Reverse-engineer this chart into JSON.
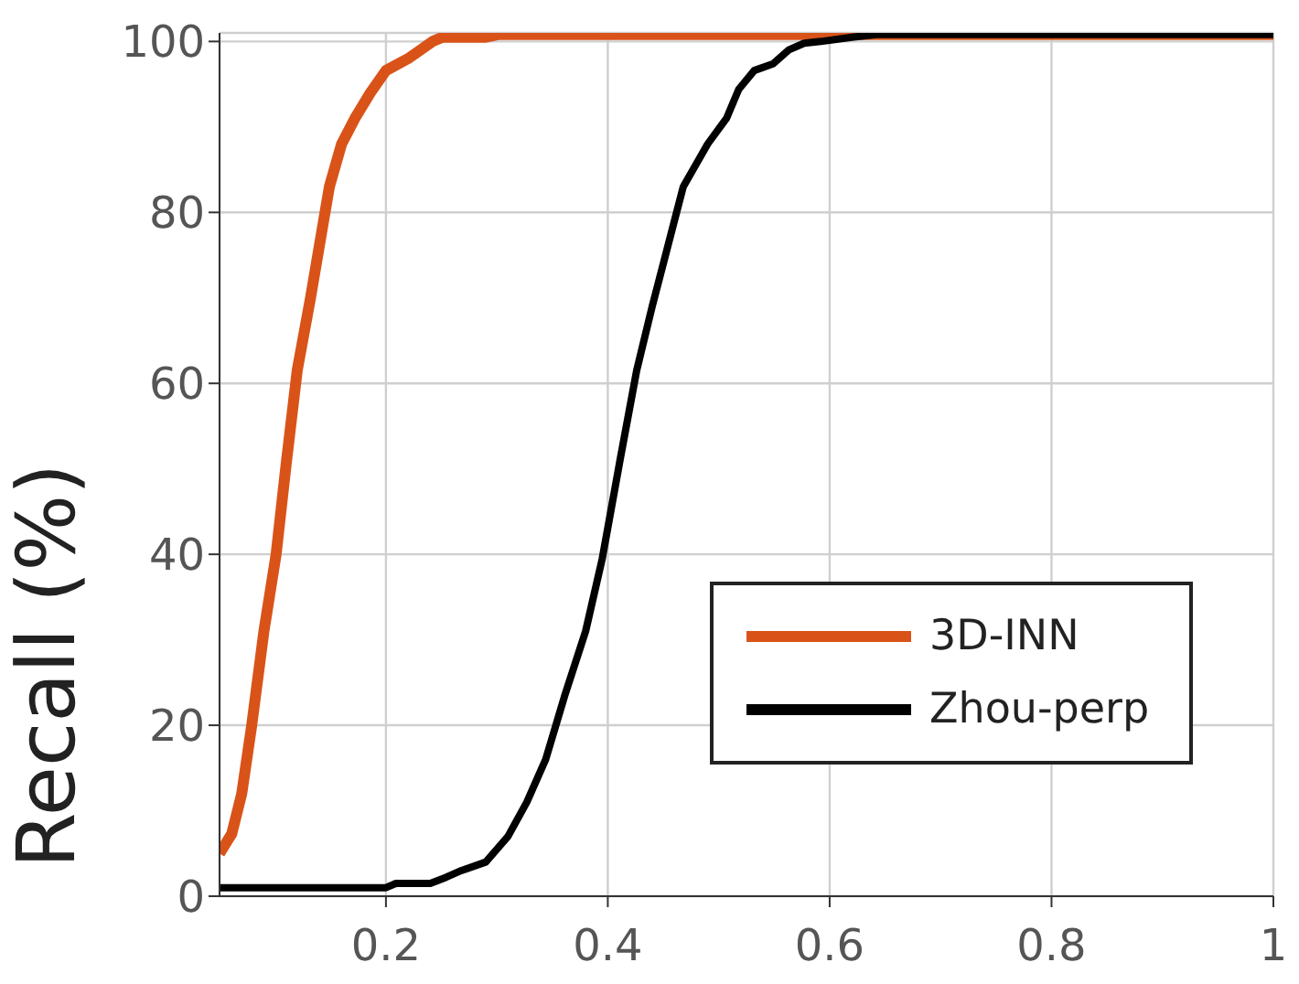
{
  "chart_data": {
    "type": "line",
    "ylabel": "Recall (%)",
    "xlim": [
      0.05,
      1
    ],
    "xticks": [
      0.2,
      0.4,
      0.6,
      0.8,
      1
    ],
    "ylim": [
      0,
      101
    ],
    "yticks": [
      0,
      20,
      40,
      60,
      80,
      100
    ],
    "grid": true,
    "legend": "bottom right",
    "marker": "none",
    "line_style": "solid",
    "series": [
      {
        "name": "3D-INN",
        "color": "#d95319",
        "x": [
          0.05,
          0.061,
          0.07,
          0.079,
          0.09,
          0.101,
          0.11,
          0.12,
          0.132,
          0.149,
          0.16,
          0.172,
          0.186,
          0.2,
          0.22,
          0.242,
          0.251,
          0.29,
          0.301,
          1
        ],
        "values": [
          5,
          7.3,
          12,
          20,
          31,
          40,
          50.5,
          61.5,
          70,
          83,
          88,
          91,
          94,
          96.6,
          98,
          100,
          100.5,
          100.5,
          100.8,
          100.8
        ]
      },
      {
        "name": "Zhou-perp",
        "color": "#000000",
        "x": [
          0.05,
          0.2,
          0.209,
          0.24,
          0.254,
          0.268,
          0.29,
          0.31,
          0.327,
          0.344,
          0.361,
          0.38,
          0.395,
          0.411,
          0.426,
          0.44,
          0.454,
          0.468,
          0.49,
          0.507,
          0.518,
          0.532,
          0.549,
          0.563,
          0.577,
          0.592,
          0.62,
          0.642,
          1
        ],
        "values": [
          1,
          1,
          1.5,
          1.5,
          2.2,
          3,
          4,
          7,
          11,
          16,
          23.4,
          31,
          39.5,
          51,
          61.5,
          69,
          76,
          83,
          88,
          91,
          94.4,
          96.6,
          97.4,
          99,
          99.8,
          100,
          100.5,
          100.8,
          100.8
        ]
      }
    ]
  }
}
